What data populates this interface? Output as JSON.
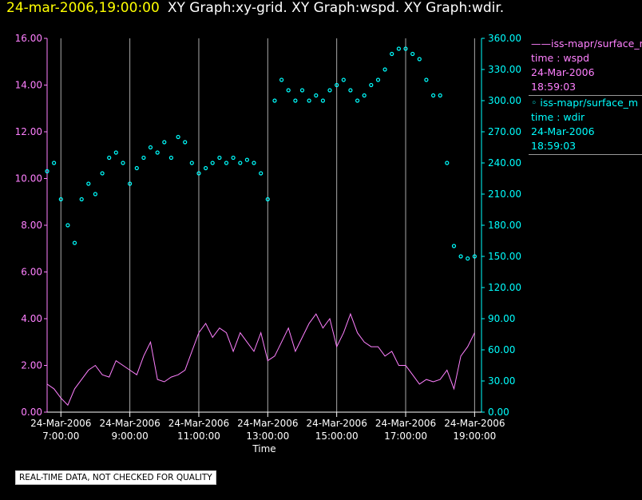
{
  "header": {
    "timestamp": "24-mar-2006,19:00:00",
    "title": "XY Graph:xy-grid.  XY Graph:wspd.  XY Graph:wdir."
  },
  "legend": [
    {
      "line": "——iss-mapr/surface_m",
      "variable": "time : wspd",
      "date": "24-Mar-2006",
      "time": "18:59:03"
    },
    {
      "line": "◦  iss-mapr/surface_m",
      "variable": "time : wdir",
      "date": "24-Mar-2006",
      "time": "18:59:03"
    }
  ],
  "quality_note": "REAL-TIME DATA, NOT CHECKED FOR QUALITY",
  "chart_data": {
    "type": "line",
    "xlabel": "Time",
    "x_ticks": [
      {
        "h": 7,
        "label": [
          "24-Mar-2006",
          "7:00:00"
        ]
      },
      {
        "h": 9,
        "label": [
          "24-Mar-2006",
          "9:00:00"
        ]
      },
      {
        "h": 11,
        "label": [
          "24-Mar-2006",
          "11:00:00"
        ]
      },
      {
        "h": 13,
        "label": [
          "24-Mar-2006",
          "13:00:00"
        ]
      },
      {
        "h": 15,
        "label": [
          "24-Mar-2006",
          "15:00:00"
        ]
      },
      {
        "h": 17,
        "label": [
          "24-Mar-2006",
          "17:00:00"
        ]
      },
      {
        "h": 19,
        "label": [
          "24-Mar-2006",
          "19:00:00"
        ]
      }
    ],
    "xlim_hours": [
      6.6,
      19.2
    ],
    "y_left": {
      "min": 0,
      "max": 16,
      "ticks": [
        "0.00",
        "2.00",
        "4.00",
        "6.00",
        "8.00",
        "10.00",
        "12.00",
        "14.00",
        "16.00"
      ]
    },
    "y_right": {
      "min": 0,
      "max": 360,
      "ticks": [
        "0.00",
        "30.00",
        "60.00",
        "90.00",
        "120.00",
        "150.00",
        "180.00",
        "210.00",
        "240.00",
        "270.00",
        "300.00",
        "330.00",
        "360.00"
      ]
    },
    "vertical_grid": true,
    "colors": {
      "wspd": "#ff80ff",
      "wdir": "#00ffff",
      "grid": "#aaaaaa",
      "axis_left": "#ff80ff",
      "axis_right": "#00ffff"
    },
    "series": [
      {
        "variable": "wspd",
        "kind": "line",
        "axis": "left",
        "x": [
          6.6,
          6.8,
          7.0,
          7.2,
          7.4,
          7.6,
          7.8,
          8.0,
          8.2,
          8.4,
          8.6,
          8.8,
          9.0,
          9.2,
          9.4,
          9.6,
          9.8,
          10.0,
          10.2,
          10.4,
          10.6,
          10.8,
          11.0,
          11.2,
          11.4,
          11.6,
          11.8,
          12.0,
          12.2,
          12.4,
          12.6,
          12.8,
          13.0,
          13.2,
          13.4,
          13.6,
          13.8,
          14.0,
          14.2,
          14.4,
          14.6,
          14.8,
          15.0,
          15.2,
          15.4,
          15.6,
          15.8,
          16.0,
          16.2,
          16.4,
          16.6,
          16.8,
          17.0,
          17.2,
          17.4,
          17.6,
          17.8,
          18.0,
          18.2,
          18.4,
          18.6,
          18.8,
          19.0
        ],
        "y": [
          1.2,
          1.0,
          0.6,
          0.3,
          1.0,
          1.4,
          1.8,
          2.0,
          1.6,
          1.5,
          2.2,
          2.0,
          1.8,
          1.6,
          2.4,
          3.0,
          1.4,
          1.3,
          1.5,
          1.6,
          1.8,
          2.6,
          3.4,
          3.8,
          3.2,
          3.6,
          3.4,
          2.6,
          3.4,
          3.0,
          2.6,
          3.4,
          2.2,
          2.4,
          3.0,
          3.6,
          2.6,
          3.2,
          3.8,
          4.2,
          3.6,
          4.0,
          2.8,
          3.4,
          4.2,
          3.4,
          3.0,
          2.8,
          2.8,
          2.4,
          2.6,
          2.0,
          2.0,
          1.6,
          1.2,
          1.4,
          1.3,
          1.4,
          1.8,
          1.0,
          2.4,
          2.8,
          3.4
        ]
      },
      {
        "variable": "wdir",
        "kind": "scatter",
        "axis": "right",
        "x": [
          6.6,
          6.8,
          7.0,
          7.2,
          7.4,
          7.6,
          7.8,
          8.0,
          8.2,
          8.4,
          8.6,
          8.8,
          9.0,
          9.2,
          9.4,
          9.6,
          9.8,
          10.0,
          10.2,
          10.4,
          10.6,
          10.8,
          11.0,
          11.2,
          11.4,
          11.6,
          11.8,
          12.0,
          12.2,
          12.4,
          12.6,
          12.8,
          13.0,
          13.2,
          13.4,
          13.6,
          13.8,
          14.0,
          14.2,
          14.4,
          14.6,
          14.8,
          15.0,
          15.2,
          15.4,
          15.6,
          15.8,
          16.0,
          16.2,
          16.4,
          16.6,
          16.8,
          17.0,
          17.2,
          17.4,
          17.6,
          17.8,
          18.0,
          18.2,
          18.4,
          18.6,
          18.8,
          19.0
        ],
        "y": [
          232,
          240,
          205,
          180,
          163,
          205,
          220,
          210,
          230,
          245,
          250,
          240,
          220,
          235,
          245,
          255,
          250,
          260,
          245,
          265,
          260,
          240,
          230,
          235,
          240,
          245,
          240,
          245,
          240,
          243,
          240,
          230,
          205,
          300,
          320,
          310,
          300,
          310,
          300,
          305,
          300,
          310,
          315,
          320,
          310,
          300,
          305,
          315,
          320,
          330,
          345,
          350,
          350,
          345,
          340,
          320,
          305,
          305,
          240,
          160,
          150,
          148,
          150
        ]
      }
    ]
  }
}
